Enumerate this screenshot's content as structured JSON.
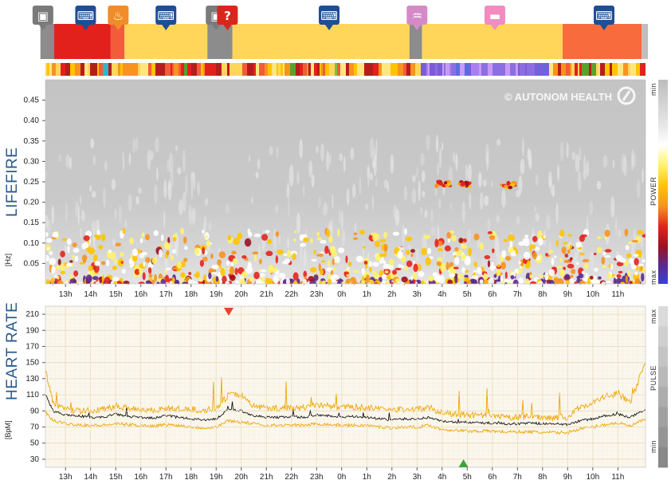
{
  "activities": {
    "icons": [
      {
        "name": "car-icon",
        "hour": 12.1
      },
      {
        "name": "keyboard-icon",
        "hour": 13.8
      },
      {
        "name": "meal-icon",
        "hour": 15.1
      },
      {
        "name": "keyboard-icon",
        "hour": 17.0
      },
      {
        "name": "car-icon",
        "hour": 19.0
      },
      {
        "name": "unknown-icon",
        "hour": 19.45
      },
      {
        "name": "keyboard-icon",
        "hour": 23.5
      },
      {
        "name": "bath-icon",
        "hour": 27.0
      },
      {
        "name": "sleep-icon",
        "hour": 30.1
      },
      {
        "name": "keyboard-icon",
        "hour": 34.45
      }
    ],
    "segments": [
      {
        "start": 12.0,
        "end": 12.55,
        "color": "#8c8c8c"
      },
      {
        "start": 12.55,
        "end": 14.8,
        "color": "#e3211c"
      },
      {
        "start": 14.8,
        "end": 15.35,
        "color": "#f25c3a"
      },
      {
        "start": 15.35,
        "end": 18.65,
        "color": "#ffd65a"
      },
      {
        "start": 18.65,
        "end": 19.65,
        "color": "#8c8c8c"
      },
      {
        "start": 19.65,
        "end": 26.7,
        "color": "#ffd65a"
      },
      {
        "start": 26.7,
        "end": 27.2,
        "color": "#8c8c8c"
      },
      {
        "start": 27.2,
        "end": 32.8,
        "color": "#ffd65a"
      },
      {
        "start": 32.8,
        "end": 35.95,
        "color": "#f76b3c"
      },
      {
        "start": 35.95,
        "end": 36.2,
        "color": "#bfbfbf"
      }
    ]
  },
  "lifefire": {
    "label": "LIFEFIRE",
    "unit": "[Hz]",
    "watermark": "© AUTONOM HEALTH",
    "colorbar": {
      "label": "POWER",
      "min_label": "min",
      "max_label": "max"
    }
  },
  "heart": {
    "label": "HEART RATE",
    "unit": "[BpM]",
    "colorbar": {
      "label": "PULSE",
      "min_label": "min",
      "max_label": "max"
    },
    "markers": {
      "max_hour": 19.5,
      "min_hour": 28.85
    }
  },
  "colors": {
    "title_blue": "#2b5a8f",
    "hr_band": "#f0a500",
    "hr_line": "#000000",
    "grid": "#f1e7cf",
    "marker_max": "#e84132",
    "marker_min": "#3ea33e"
  },
  "chart_data": [
    {
      "type": "heatmap",
      "ylabel": "[Hz]",
      "x_ticks": [
        "13h",
        "14h",
        "15h",
        "16h",
        "17h",
        "18h",
        "19h",
        "20h",
        "21h",
        "22h",
        "23h",
        "0h",
        "1h",
        "2h",
        "3h",
        "4h",
        "5h",
        "6h",
        "7h",
        "8h",
        "9h",
        "10h",
        "11h"
      ],
      "y_ticks": [
        0.05,
        0.1,
        0.15,
        0.2,
        0.25,
        0.3,
        0.35,
        0.4,
        0.45
      ],
      "ylim": [
        0,
        0.5
      ],
      "xlim_hours": [
        12.2,
        36.1
      ],
      "legend": "POWER (min → max)",
      "hotspots": [
        {
          "hour": 28.1,
          "freq": 0.245
        },
        {
          "hour": 29.0,
          "freq": 0.243
        },
        {
          "hour": 30.6,
          "freq": 0.242
        }
      ]
    },
    {
      "type": "line",
      "ylabel": "[BpM]",
      "x_ticks": [
        "13h",
        "14h",
        "15h",
        "16h",
        "17h",
        "18h",
        "19h",
        "20h",
        "21h",
        "22h",
        "23h",
        "0h",
        "1h",
        "2h",
        "3h",
        "4h",
        "5h",
        "6h",
        "7h",
        "8h",
        "9h",
        "10h",
        "11h"
      ],
      "y_ticks": [
        30,
        50,
        70,
        90,
        110,
        130,
        150,
        170,
        190,
        210
      ],
      "ylim": [
        20,
        220
      ],
      "xlim_hours": [
        12.2,
        36.1
      ],
      "x_hours": [
        12.2,
        12.5,
        13,
        13.5,
        14,
        14.5,
        15,
        15.5,
        16,
        16.5,
        17,
        17.5,
        18,
        18.5,
        19,
        19.5,
        20,
        20.5,
        21,
        21.5,
        22,
        22.5,
        23,
        23.5,
        24,
        24.5,
        25,
        25.5,
        26,
        26.5,
        27,
        27.5,
        28,
        28.5,
        29,
        29.5,
        30,
        30.5,
        31,
        31.5,
        32,
        32.5,
        33,
        33.5,
        34,
        34.5,
        35,
        35.5,
        36.1
      ],
      "series": [
        {
          "values": [
            110,
            90,
            85,
            84,
            82,
            82,
            86,
            83,
            82,
            81,
            84,
            82,
            80,
            79,
            80,
            92,
            90,
            84,
            82,
            82,
            83,
            82,
            85,
            84,
            82,
            83,
            82,
            80,
            79,
            80,
            80,
            82,
            77,
            76,
            76,
            75,
            75,
            74,
            74,
            75,
            74,
            74,
            73,
            78,
            80,
            84,
            86,
            82,
            92
          ]
        },
        {
          "values": [
            140,
            100,
            92,
            90,
            90,
            92,
            96,
            94,
            92,
            91,
            93,
            92,
            92,
            91,
            92,
            110,
            110,
            96,
            94,
            93,
            94,
            94,
            98,
            96,
            94,
            95,
            94,
            92,
            91,
            92,
            92,
            94,
            88,
            85,
            85,
            84,
            83,
            82,
            82,
            83,
            82,
            82,
            82,
            95,
            100,
            108,
            112,
            100,
            150
          ]
        },
        {
          "values": [
            88,
            78,
            74,
            73,
            72,
            72,
            74,
            73,
            72,
            71,
            73,
            72,
            70,
            69,
            70,
            78,
            76,
            74,
            72,
            72,
            72,
            72,
            74,
            73,
            72,
            72,
            72,
            70,
            69,
            70,
            70,
            72,
            67,
            66,
            65,
            65,
            65,
            64,
            64,
            64,
            63,
            63,
            63,
            68,
            70,
            73,
            75,
            71,
            80
          ]
        }
      ]
    }
  ]
}
